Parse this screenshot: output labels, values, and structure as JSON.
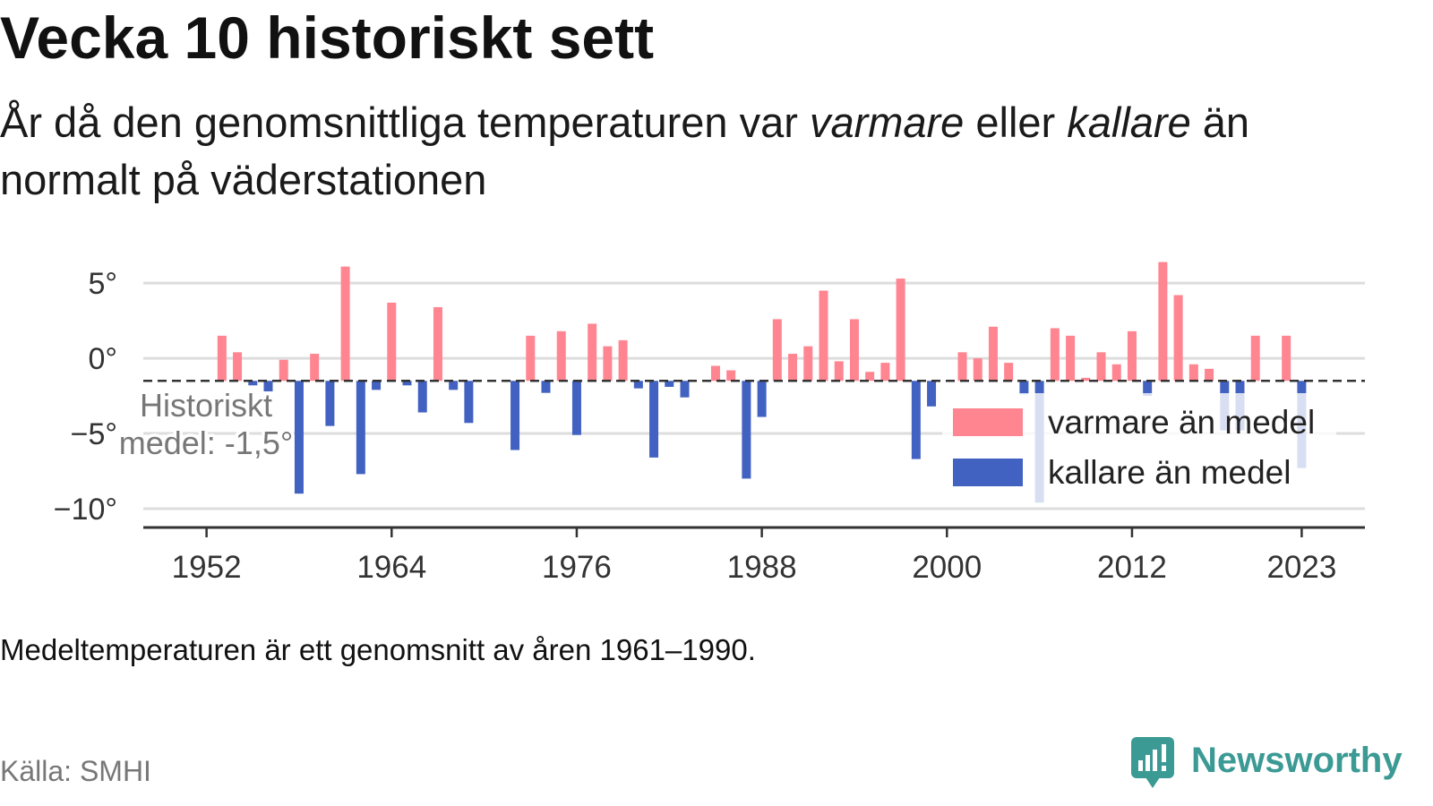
{
  "title": "Vecka 10 historiskt sett",
  "subtitle": {
    "before": "År då den genomsnittliga temperaturen var ",
    "warmer": "varmare",
    "middle": " eller ",
    "colder": "kallare",
    "after": " än normalt på väderstationen"
  },
  "note": "Medeltemperaturen är ett genomsnitt av åren 1961–1990.",
  "source": "Källa: SMHI",
  "brand": {
    "name": "Newsworthy",
    "icon": "newsworthy-logo-icon",
    "color": "#3c9a95"
  },
  "chart_data": {
    "type": "bar",
    "title": "",
    "xlabel": "",
    "ylabel": "",
    "x": [
      1953,
      1954,
      1955,
      1956,
      1957,
      1958,
      1959,
      1960,
      1961,
      1962,
      1963,
      1964,
      1965,
      1966,
      1967,
      1968,
      1969,
      1972,
      1973,
      1974,
      1975,
      1976,
      1977,
      1978,
      1979,
      1980,
      1981,
      1982,
      1983,
      1985,
      1986,
      1987,
      1988,
      1989,
      1990,
      1991,
      1992,
      1993,
      1994,
      1995,
      1996,
      1997,
      1998,
      1999,
      2001,
      2002,
      2003,
      2004,
      2005,
      2006,
      2007,
      2008,
      2009,
      2010,
      2011,
      2012,
      2013,
      2014,
      2015,
      2016,
      2017,
      2018,
      2019,
      2020,
      2022,
      2023
    ],
    "values": [
      1.5,
      0.4,
      -1.8,
      -2.2,
      -0.1,
      -9.0,
      0.3,
      -4.5,
      6.1,
      -7.7,
      -2.1,
      3.7,
      -1.8,
      -3.6,
      3.4,
      -2.1,
      -4.3,
      -6.1,
      1.5,
      -2.3,
      1.8,
      -5.1,
      2.3,
      0.8,
      1.2,
      -2.0,
      -6.6,
      -1.9,
      -2.6,
      -0.5,
      -0.8,
      -8.0,
      -3.9,
      2.6,
      0.3,
      0.8,
      4.5,
      -0.2,
      2.6,
      -0.9,
      -0.3,
      5.3,
      -6.7,
      -3.2,
      0.4,
      0.0,
      2.1,
      -0.3,
      -2.4,
      -9.6,
      2.0,
      1.5,
      -1.3,
      0.4,
      -0.4,
      1.8,
      -2.5,
      6.4,
      4.2,
      -0.4,
      -0.7,
      -4.8,
      -4.8,
      1.5,
      1.5,
      -7.3
    ],
    "baseline": -1.5,
    "baseline_label": {
      "line1": "Historiskt",
      "line2": "medel: -1,5°"
    },
    "xlim": [
      1947.9,
      2027.1
    ],
    "ylim": [
      -11.25,
      7.15
    ],
    "y_ticks": [
      5,
      0,
      -5,
      -10
    ],
    "y_tick_labels": [
      "5°",
      "0°",
      "−5°",
      "−10°"
    ],
    "x_ticks": [
      1952,
      1964,
      1976,
      1988,
      2000,
      2012,
      2023
    ],
    "x_tick_labels": [
      "1952",
      "1964",
      "1976",
      "1988",
      "2000",
      "2012",
      "2023"
    ],
    "grid": true,
    "legend_position": "bottom-right",
    "legend": [
      {
        "label": "varmare än medel",
        "color": "#ff8591"
      },
      {
        "label": "kallare än medel",
        "color": "#4262c2"
      }
    ],
    "colors": {
      "grid": "#dddddd",
      "axis": "#333333",
      "baseline": "#333333",
      "annotation": "#777777"
    }
  }
}
